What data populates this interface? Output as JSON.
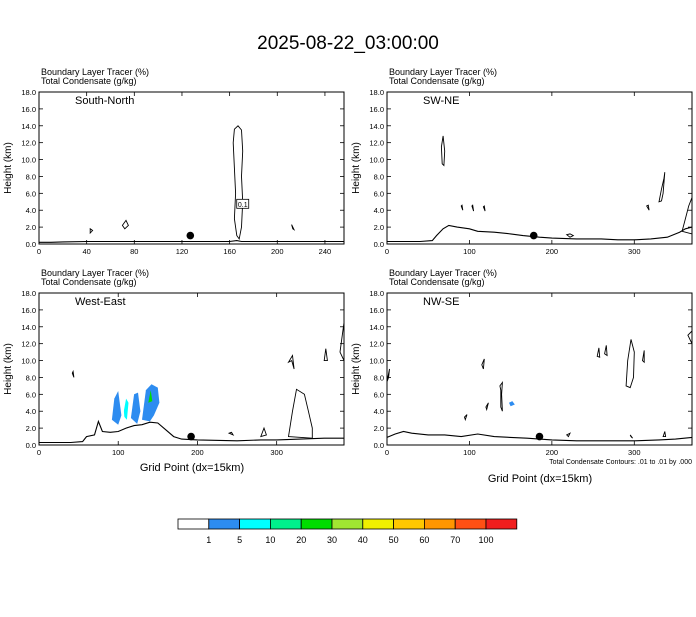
{
  "title": "2025-08-22_03:00:00",
  "chart_data": [
    {
      "type": "contour",
      "panel": "South-North",
      "header": [
        "Boundary Layer Tracer   (%)",
        "Total Condensate   (g/kg)"
      ],
      "ylabel": "Height (km)",
      "xlabel": "",
      "xlim": [
        0,
        256
      ],
      "ylim": [
        0,
        18
      ],
      "xticks": [
        0,
        40,
        80,
        120,
        160,
        200,
        240
      ],
      "yticks": [
        0,
        2,
        4,
        6,
        8,
        10,
        12,
        14,
        16,
        18
      ],
      "marker": {
        "x": 127,
        "y": 1.0
      },
      "box_label": "0.1",
      "box_at": {
        "x": 171,
        "y": 4.7
      },
      "terrain": [
        [
          0,
          0.2
        ],
        [
          10,
          0.2
        ],
        [
          20,
          0.25
        ],
        [
          40,
          0.3
        ],
        [
          60,
          0.3
        ],
        [
          80,
          0.3
        ],
        [
          100,
          0.3
        ],
        [
          120,
          0.3
        ],
        [
          140,
          0.3
        ],
        [
          160,
          0.3
        ],
        [
          166,
          0.4
        ],
        [
          170,
          0.3
        ],
        [
          200,
          0.3
        ],
        [
          240,
          0.3
        ],
        [
          256,
          0.3
        ]
      ],
      "contours": [
        [
          [
            166,
            1.0
          ],
          [
            164,
            3.0
          ],
          [
            165,
            6.0
          ],
          [
            164,
            9.0
          ],
          [
            163,
            12.0
          ],
          [
            164,
            13.6
          ],
          [
            167,
            14.0
          ],
          [
            170,
            13.5
          ],
          [
            171,
            11.0
          ],
          [
            170,
            8.0
          ],
          [
            171,
            5.0
          ],
          [
            170,
            2.0
          ],
          [
            168,
            0.6
          ]
        ],
        [
          [
            70,
            2.2
          ],
          [
            73,
            2.8
          ],
          [
            75,
            2.2
          ],
          [
            72,
            1.8
          ]
        ],
        [
          [
            43,
            1.8
          ],
          [
            45,
            1.6
          ],
          [
            43,
            1.3
          ]
        ],
        [
          [
            212,
            2.3
          ],
          [
            214,
            1.7
          ],
          [
            213,
            1.8
          ]
        ]
      ],
      "filled": []
    },
    {
      "type": "contour",
      "panel": "SW-NE",
      "header": [
        "Boundary Layer Tracer   (%)",
        "Total Condensate   (g/kg)"
      ],
      "ylabel": "Height (km)",
      "xlabel": "",
      "xlim": [
        0,
        370
      ],
      "ylim": [
        0,
        18
      ],
      "xticks": [
        0,
        100,
        200,
        300
      ],
      "yticks": [
        0,
        2,
        4,
        6,
        8,
        10,
        12,
        14,
        16,
        18
      ],
      "marker": {
        "x": 178,
        "y": 1.0
      },
      "terrain": [
        [
          0,
          0.3
        ],
        [
          40,
          0.3
        ],
        [
          55,
          0.4
        ],
        [
          60,
          1.0
        ],
        [
          68,
          1.8
        ],
        [
          75,
          2.2
        ],
        [
          85,
          2.0
        ],
        [
          100,
          1.8
        ],
        [
          110,
          1.5
        ],
        [
          130,
          1.4
        ],
        [
          150,
          1.2
        ],
        [
          165,
          1.0
        ],
        [
          185,
          0.8
        ],
        [
          200,
          0.7
        ],
        [
          230,
          0.6
        ],
        [
          260,
          0.6
        ],
        [
          280,
          0.5
        ],
        [
          300,
          0.5
        ],
        [
          320,
          0.6
        ],
        [
          340,
          0.8
        ],
        [
          355,
          1.4
        ],
        [
          362,
          1.8
        ],
        [
          370,
          2.0
        ]
      ],
      "contours": [
        [
          [
            67,
            9.5
          ],
          [
            66,
            11.5
          ],
          [
            68,
            12.8
          ],
          [
            70,
            11.0
          ],
          [
            69,
            9.3
          ]
        ],
        [
          [
            90,
            4.5
          ],
          [
            92,
            4.0
          ],
          [
            91,
            4.6
          ]
        ],
        [
          [
            103,
            4.5
          ],
          [
            105,
            3.9
          ],
          [
            104,
            4.6
          ]
        ],
        [
          [
            117,
            4.4
          ],
          [
            119,
            3.9
          ],
          [
            118,
            4.5
          ]
        ],
        [
          [
            218,
            1.1
          ],
          [
            222,
            0.8
          ],
          [
            226,
            1.0
          ],
          [
            222,
            1.2
          ]
        ],
        [
          [
            315,
            4.5
          ],
          [
            318,
            4.0
          ],
          [
            317,
            4.6
          ]
        ],
        [
          [
            330,
            5.0
          ],
          [
            333,
            6.5
          ],
          [
            336,
            7.8
          ],
          [
            337,
            8.5
          ],
          [
            335,
            6.0
          ],
          [
            333,
            5.1
          ]
        ],
        [
          [
            358,
            1.5
          ],
          [
            362,
            3.0
          ],
          [
            366,
            4.5
          ],
          [
            370,
            5.5
          ],
          [
            370,
            1.2
          ]
        ]
      ],
      "filled": []
    },
    {
      "type": "contour",
      "panel": "West-East",
      "header": [
        "Boundary Layer Tracer   (%)",
        "Total Condensate   (g/kg)"
      ],
      "ylabel": "Height (km)",
      "xlabel": "Grid Point (dx=15km)",
      "xlim": [
        0,
        385
      ],
      "ylim": [
        0,
        18
      ],
      "xticks": [
        0,
        100,
        200,
        300
      ],
      "yticks": [
        0,
        2,
        4,
        6,
        8,
        10,
        12,
        14,
        16,
        18
      ],
      "marker": {
        "x": 192,
        "y": 1.0
      },
      "terrain": [
        [
          0,
          0.3
        ],
        [
          40,
          0.3
        ],
        [
          55,
          0.4
        ],
        [
          60,
          1.0
        ],
        [
          70,
          1.2
        ],
        [
          75,
          2.8
        ],
        [
          80,
          1.6
        ],
        [
          90,
          1.5
        ],
        [
          100,
          1.6
        ],
        [
          110,
          2.0
        ],
        [
          120,
          2.3
        ],
        [
          130,
          2.4
        ],
        [
          140,
          2.7
        ],
        [
          150,
          2.6
        ],
        [
          160,
          1.8
        ],
        [
          170,
          1.0
        ],
        [
          180,
          0.7
        ],
        [
          200,
          0.6
        ],
        [
          250,
          0.5
        ],
        [
          280,
          0.6
        ],
        [
          300,
          0.6
        ],
        [
          330,
          0.7
        ],
        [
          360,
          0.8
        ],
        [
          385,
          0.8
        ]
      ],
      "contours": [
        [
          [
            42,
            8.5
          ],
          [
            44,
            8.0
          ],
          [
            43,
            8.7
          ]
        ],
        [
          [
            240,
            1.4
          ],
          [
            245,
            1.2
          ],
          [
            243,
            1.5
          ]
        ],
        [
          [
            280,
            1.0
          ],
          [
            284,
            2.0
          ],
          [
            287,
            1.2
          ]
        ],
        [
          [
            315,
            9.8
          ],
          [
            320,
            10.6
          ],
          [
            322,
            9.0
          ],
          [
            319,
            10.0
          ]
        ],
        [
          [
            315,
            1.0
          ],
          [
            320,
            4.0
          ],
          [
            325,
            6.6
          ],
          [
            335,
            6.0
          ],
          [
            340,
            4.0
          ],
          [
            345,
            2.0
          ],
          [
            345,
            0.8
          ]
        ],
        [
          [
            360,
            10.0
          ],
          [
            362,
            11.4
          ],
          [
            364,
            10.0
          ]
        ],
        [
          [
            380,
            11.0
          ],
          [
            385,
            14.5
          ],
          [
            385,
            10.0
          ]
        ]
      ],
      "filled": [
        {
          "cls": 1,
          "pts": [
            [
              92,
              3.0
            ],
            [
              95,
              5.5
            ],
            [
              100,
              6.4
            ],
            [
              104,
              3.5
            ],
            [
              100,
              2.4
            ]
          ]
        },
        {
          "cls": 1,
          "pts": [
            [
              116,
              3.2
            ],
            [
              120,
              6.0
            ],
            [
              125,
              6.2
            ],
            [
              128,
              4.0
            ],
            [
              124,
              2.5
            ]
          ]
        },
        {
          "cls": 1,
          "pts": [
            [
              130,
              3.0
            ],
            [
              135,
              6.5
            ],
            [
              142,
              7.2
            ],
            [
              150,
              6.8
            ],
            [
              152,
              5.0
            ],
            [
              145,
              3.5
            ],
            [
              140,
              2.8
            ]
          ]
        },
        {
          "cls": 2,
          "pts": [
            [
              106,
              3.5
            ],
            [
              110,
              5.5
            ],
            [
              113,
              5.0
            ],
            [
              111,
              3.0
            ]
          ]
        },
        {
          "cls": 0,
          "pts": [
            [
              104,
              3.0
            ],
            [
              106,
              5.2
            ],
            [
              108,
              3.0
            ]
          ]
        },
        {
          "cls": 4,
          "pts": [
            [
              138,
              5.0
            ],
            [
              141,
              6.5
            ],
            [
              143,
              5.2
            ]
          ]
        }
      ]
    },
    {
      "type": "contour",
      "panel": "NW-SE",
      "header": [
        "Boundary Layer Tracer   (%)",
        "Total Condensate   (g/kg)"
      ],
      "ylabel": "Height (km)",
      "xlabel": "Grid Point (dx=15km)",
      "xlim": [
        0,
        370
      ],
      "ylim": [
        0,
        18
      ],
      "xticks": [
        0,
        100,
        200,
        300
      ],
      "yticks": [
        0,
        2,
        4,
        6,
        8,
        10,
        12,
        14,
        16,
        18
      ],
      "marker": {
        "x": 185,
        "y": 1.0
      },
      "note": "Total Condensate Contours: .01 to .01 by .000",
      "terrain": [
        [
          0,
          0.9
        ],
        [
          10,
          1.3
        ],
        [
          20,
          1.6
        ],
        [
          30,
          1.4
        ],
        [
          50,
          1.2
        ],
        [
          70,
          1.2
        ],
        [
          90,
          1.0
        ],
        [
          110,
          1.3
        ],
        [
          130,
          1.0
        ],
        [
          150,
          0.9
        ],
        [
          170,
          0.8
        ],
        [
          200,
          0.6
        ],
        [
          230,
          0.5
        ],
        [
          260,
          0.5
        ],
        [
          300,
          0.5
        ],
        [
          330,
          0.6
        ],
        [
          350,
          0.7
        ],
        [
          370,
          0.9
        ]
      ],
      "contours": [
        [
          [
            0,
            7.5
          ],
          [
            3,
            9.0
          ],
          [
            2,
            8.0
          ]
        ],
        [
          [
            115,
            9.5
          ],
          [
            118,
            10.2
          ],
          [
            117,
            9.0
          ]
        ],
        [
          [
            120,
            4.5
          ],
          [
            123,
            5.0
          ],
          [
            121,
            4.2
          ]
        ],
        [
          [
            137,
            7.0
          ],
          [
            140,
            7.4
          ],
          [
            139,
            6.0
          ],
          [
            140,
            4.0
          ],
          [
            138,
            4.5
          ],
          [
            138,
            6.5
          ]
        ],
        [
          [
            94,
            3.3
          ],
          [
            97,
            3.6
          ],
          [
            95,
            3.0
          ]
        ],
        [
          [
            218,
            1.2
          ],
          [
            222,
            1.4
          ],
          [
            220,
            1.0
          ]
        ],
        [
          [
            255,
            10.5
          ],
          [
            257,
            11.5
          ],
          [
            258,
            10.4
          ]
        ],
        [
          [
            264,
            10.8
          ],
          [
            266,
            11.8
          ],
          [
            267,
            10.6
          ]
        ],
        [
          [
            290,
            7.0
          ],
          [
            292,
            10.0
          ],
          [
            296,
            12.5
          ],
          [
            300,
            11.0
          ],
          [
            299,
            8.0
          ],
          [
            295,
            6.8
          ]
        ],
        [
          [
            310,
            10.0
          ],
          [
            312,
            11.2
          ],
          [
            312,
            9.8
          ]
        ],
        [
          [
            295,
            1.2
          ],
          [
            298,
            0.8
          ],
          [
            296,
            1.0
          ]
        ],
        [
          [
            335,
            1.0
          ],
          [
            337,
            1.6
          ],
          [
            338,
            1.0
          ]
        ],
        [
          [
            365,
            13.0
          ],
          [
            370,
            13.5
          ],
          [
            370,
            12.0
          ]
        ]
      ],
      "filled": [
        {
          "cls": 1,
          "pts": [
            [
              148,
              5.0
            ],
            [
              152,
              5.2
            ],
            [
              155,
              4.8
            ],
            [
              150,
              4.6
            ]
          ]
        }
      ]
    }
  ],
  "legend": {
    "colors": [
      "#ffffff",
      "#2d8cf0",
      "#00ffff",
      "#00f08c",
      "#00dc00",
      "#a0e632",
      "#f0f000",
      "#ffc800",
      "#ff9600",
      "#ff5014",
      "#f01e1e"
    ],
    "labels": [
      "1",
      "5",
      "10",
      "20",
      "30",
      "40",
      "50",
      "60",
      "70",
      "100"
    ]
  }
}
